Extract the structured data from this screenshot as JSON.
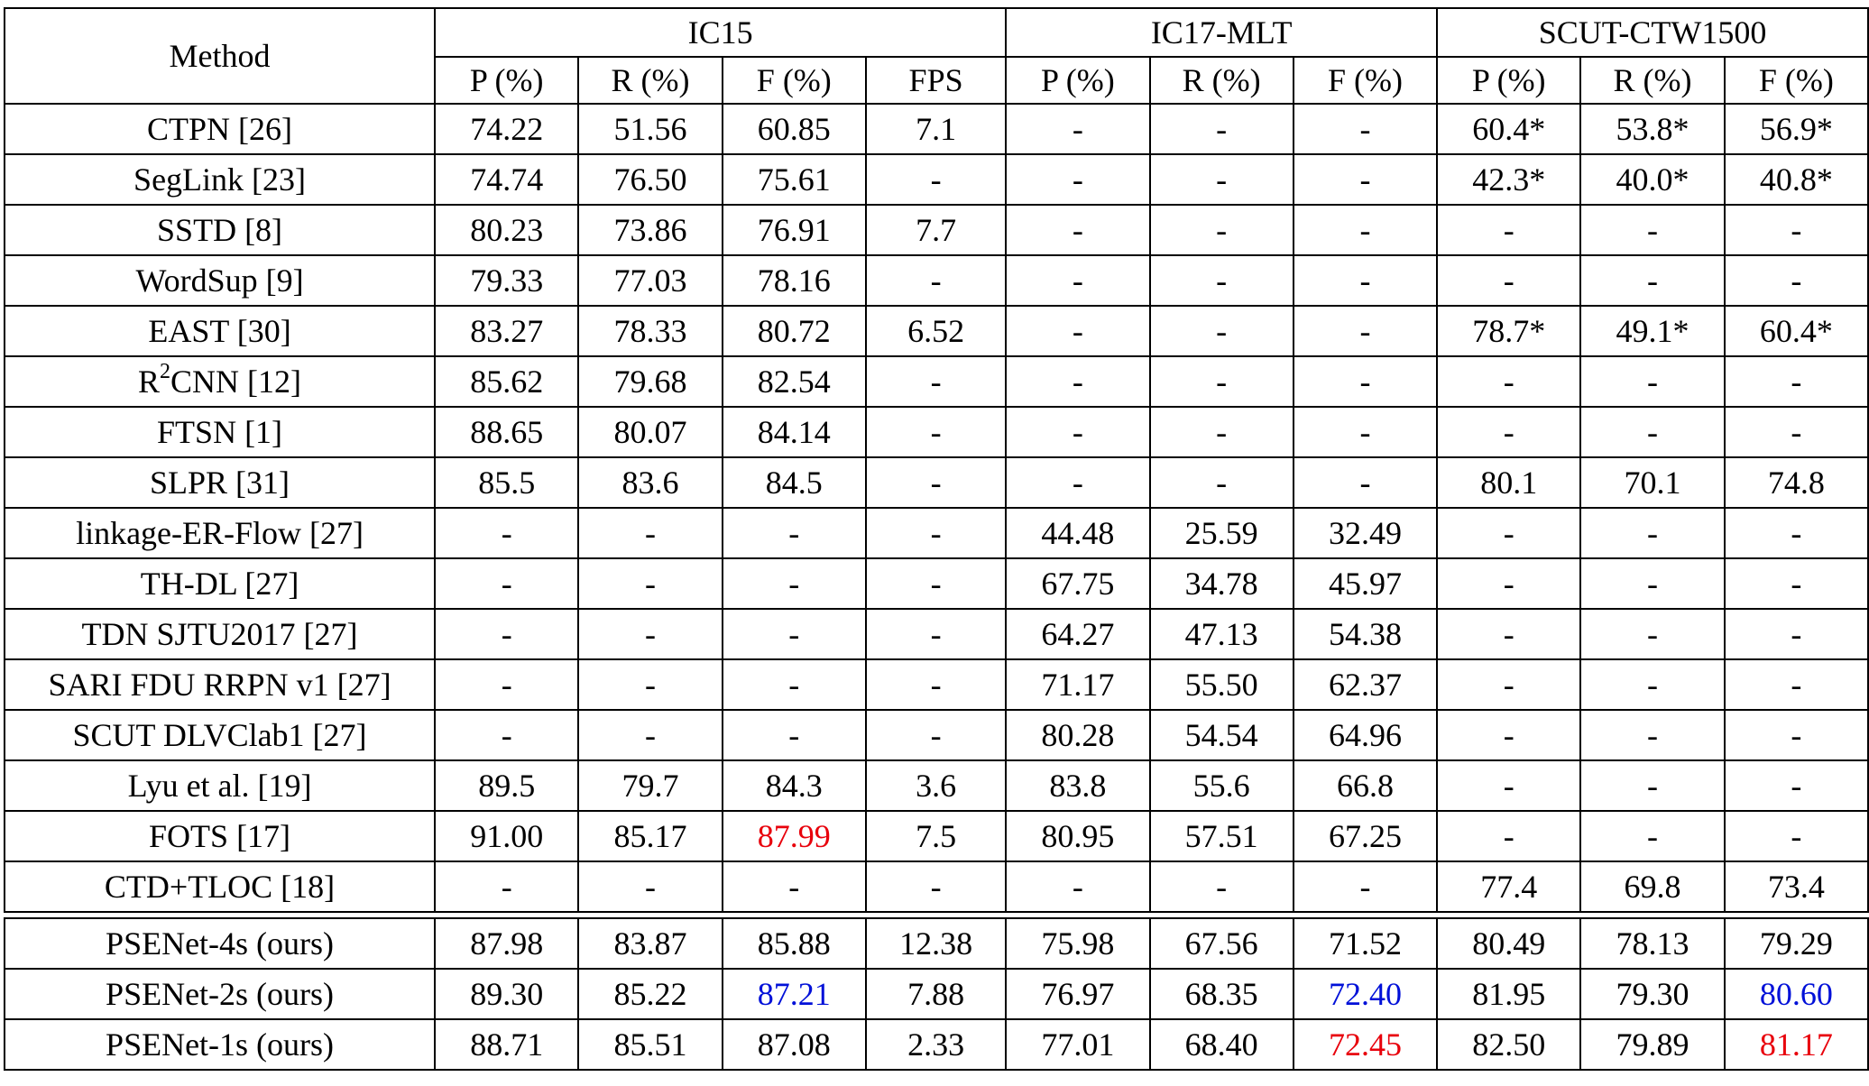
{
  "header": {
    "method": "Method",
    "groups": [
      {
        "label": "IC15",
        "span": 4
      },
      {
        "label": "IC17-MLT",
        "span": 3
      },
      {
        "label": "SCUT-CTW1500",
        "span": 3
      }
    ],
    "columns": [
      "P (%)",
      "R (%)",
      "F (%)",
      "FPS",
      "P (%)",
      "R (%)",
      "F (%)",
      "P (%)",
      "R (%)",
      "F (%)"
    ]
  },
  "rows": [
    {
      "method": "CTPN [26]",
      "values": [
        "74.22",
        "51.56",
        "60.85",
        "7.1",
        "-",
        "-",
        "-",
        "60.4*",
        "53.8*",
        "56.9*"
      ]
    },
    {
      "method": "SegLink [23]",
      "values": [
        "74.74",
        "76.50",
        "75.61",
        "-",
        "-",
        "-",
        "-",
        "42.3*",
        "40.0*",
        "40.8*"
      ]
    },
    {
      "method": "SSTD [8]",
      "values": [
        "80.23",
        "73.86",
        "76.91",
        "7.7",
        "-",
        "-",
        "-",
        "-",
        "-",
        "-"
      ]
    },
    {
      "method": "WordSup [9]",
      "values": [
        "79.33",
        "77.03",
        "78.16",
        "-",
        "-",
        "-",
        "-",
        "-",
        "-",
        "-"
      ]
    },
    {
      "method": "EAST [30]",
      "values": [
        "83.27",
        "78.33",
        "80.72",
        "6.52",
        "-",
        "-",
        "-",
        "78.7*",
        "49.1*",
        "60.4*"
      ]
    },
    {
      "method": "R",
      "method_sup": "2",
      "method_rest": "CNN [12]",
      "values": [
        "85.62",
        "79.68",
        "82.54",
        "-",
        "-",
        "-",
        "-",
        "-",
        "-",
        "-"
      ]
    },
    {
      "method": "FTSN [1]",
      "values": [
        "88.65",
        "80.07",
        "84.14",
        "-",
        "-",
        "-",
        "-",
        "-",
        "-",
        "-"
      ]
    },
    {
      "method": "SLPR [31]",
      "values": [
        "85.5",
        "83.6",
        "84.5",
        "-",
        "-",
        "-",
        "-",
        "80.1",
        "70.1",
        "74.8"
      ]
    },
    {
      "method": "linkage-ER-Flow [27]",
      "values": [
        "-",
        "-",
        "-",
        "-",
        "44.48",
        "25.59",
        "32.49",
        "-",
        "-",
        "-"
      ]
    },
    {
      "method": "TH-DL [27]",
      "values": [
        "-",
        "-",
        "-",
        "-",
        "67.75",
        "34.78",
        "45.97",
        "-",
        "-",
        "-"
      ]
    },
    {
      "method": "TDN SJTU2017 [27]",
      "values": [
        "-",
        "-",
        "-",
        "-",
        "64.27",
        "47.13",
        "54.38",
        "-",
        "-",
        "-"
      ]
    },
    {
      "method": "SARI FDU RRPN v1 [27]",
      "values": [
        "-",
        "-",
        "-",
        "-",
        "71.17",
        "55.50",
        "62.37",
        "-",
        "-",
        "-"
      ]
    },
    {
      "method": "SCUT DLVClab1 [27]",
      "values": [
        "-",
        "-",
        "-",
        "-",
        "80.28",
        "54.54",
        "64.96",
        "-",
        "-",
        "-"
      ]
    },
    {
      "method": "Lyu et al. [19]",
      "values": [
        "89.5",
        "79.7",
        "84.3",
        "3.6",
        "83.8",
        "55.6",
        "66.8",
        "-",
        "-",
        "-"
      ]
    },
    {
      "method": "FOTS [17]",
      "values": [
        "91.00",
        "85.17",
        "87.99",
        "7.5",
        "80.95",
        "57.51",
        "67.25",
        "-",
        "-",
        "-"
      ],
      "colors": {
        "2": "red"
      }
    },
    {
      "method": "CTD+TLOC [18]",
      "values": [
        "-",
        "-",
        "-",
        "-",
        "-",
        "-",
        "-",
        "77.4",
        "69.8",
        "73.4"
      ]
    }
  ],
  "ours": [
    {
      "method": "PSENet-4s (ours)",
      "values": [
        "87.98",
        "83.87",
        "85.88",
        "12.38",
        "75.98",
        "67.56",
        "71.52",
        "80.49",
        "78.13",
        "79.29"
      ]
    },
    {
      "method": "PSENet-2s (ours)",
      "values": [
        "89.30",
        "85.22",
        "87.21",
        "7.88",
        "76.97",
        "68.35",
        "72.40",
        "81.95",
        "79.30",
        "80.60"
      ],
      "colors": {
        "2": "blue",
        "6": "blue",
        "9": "blue"
      }
    },
    {
      "method": "PSENet-1s (ours)",
      "values": [
        "88.71",
        "85.51",
        "87.08",
        "2.33",
        "77.01",
        "68.40",
        "72.45",
        "82.50",
        "79.89",
        "81.17"
      ],
      "colors": {
        "6": "red",
        "9": "red"
      }
    }
  ],
  "colors": {
    "red": "#e8000b",
    "blue": "#0010d8"
  }
}
